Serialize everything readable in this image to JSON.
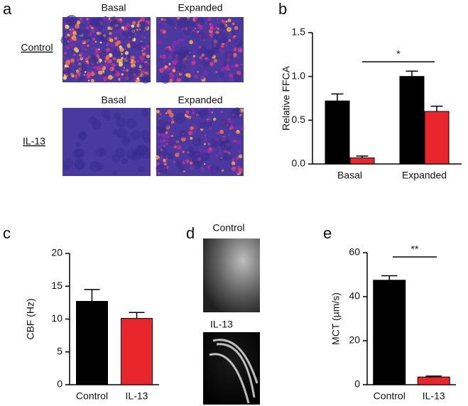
{
  "figure_a": {
    "panel_label": "a",
    "row_labels": [
      "Control",
      "IL-13"
    ],
    "column_labels": [
      [
        "Basal",
        "Expanded"
      ],
      [
        "Basal",
        "Expanded"
      ]
    ]
  },
  "figure_d": {
    "panel_label": "d",
    "labels": [
      "Control",
      "IL-13"
    ]
  },
  "chart_data": [
    {
      "type": "grouped_bar",
      "panel_label": "b",
      "ylabel": "Relative FFCA",
      "categories": [
        "Basal",
        "Expanded"
      ],
      "series": [
        {
          "color": "#000000",
          "values": [
            0.72,
            1.0
          ],
          "errors": [
            0.08,
            0.06
          ]
        },
        {
          "color": "#e8262b",
          "values": [
            0.07,
            0.6
          ],
          "errors": [
            0.02,
            0.06
          ]
        }
      ],
      "ylim": [
        0,
        1.5
      ],
      "yticks": [
        {
          "value": 0,
          "label": "0.0"
        },
        0.5,
        {
          "value": 1,
          "label": "1.0"
        },
        1.5
      ],
      "significance": "*"
    },
    {
      "type": "bar",
      "panel_label": "c",
      "ylabel": "CBF (Hz)",
      "categories": [
        "Control",
        "IL-13"
      ],
      "values": [
        12.7,
        10.1
      ],
      "errors": [
        1.8,
        0.9
      ],
      "colors": [
        "#000000",
        "#e8262b"
      ],
      "ylim": [
        0,
        20
      ],
      "yticks": [
        0,
        5,
        10,
        15,
        20
      ]
    },
    {
      "type": "bar",
      "panel_label": "e",
      "ylabel": "MCT (µm/s)",
      "categories": [
        "Control",
        "IL-13"
      ],
      "values": [
        47.5,
        3.5
      ],
      "errors": [
        2,
        0.4
      ],
      "colors": [
        "#000000",
        "#e8262b"
      ],
      "ylim": [
        0,
        60
      ],
      "yticks": [
        0,
        20,
        40,
        60
      ],
      "significance": "**"
    }
  ]
}
